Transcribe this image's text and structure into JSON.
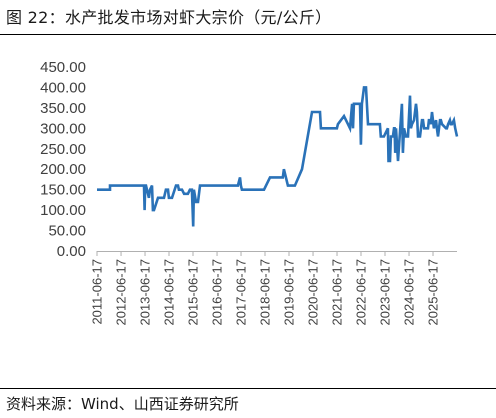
{
  "figure": {
    "title": "图 22：水产批发市场对虾大宗价（元/公斤）",
    "source": "资料来源：Wind、山西证券研究所"
  },
  "chart_data": {
    "type": "line",
    "title": "",
    "xlabel": "",
    "ylabel": "",
    "ylim": [
      0,
      450
    ],
    "yticks": [
      "0.00",
      "50.00",
      "100.00",
      "150.00",
      "200.00",
      "250.00",
      "300.00",
      "350.00",
      "400.00",
      "450.00"
    ],
    "xlim": [
      "2011-06-17",
      "2026-06-17"
    ],
    "xticks": [
      "2011-06-17",
      "2012-06-17",
      "2013-06-17",
      "2014-06-17",
      "2015-06-17",
      "2016-06-17",
      "2017-06-17",
      "2018-06-17",
      "2019-06-17",
      "2020-06-17",
      "2021-06-17",
      "2022-06-17",
      "2023-06-17",
      "2024-06-17",
      "2025-06-17"
    ],
    "grid": false,
    "legend": "none",
    "color": "#2a72b8",
    "series": [
      {
        "x": [
          "2011-06-17",
          "2012-01-01",
          "2012-01-01",
          "2013-06-01",
          "2013-06-10",
          "2013-06-20",
          "2013-07-01",
          "2013-08-15",
          "2013-09-01",
          "2013-10-01",
          "2013-10-15",
          "2013-11-01",
          "2014-01-01",
          "2014-02-01",
          "2014-04-01",
          "2014-05-01",
          "2014-06-01",
          "2014-06-15",
          "2014-07-01",
          "2014-08-01",
          "2014-10-01",
          "2014-11-01",
          "2014-11-15",
          "2015-01-01",
          "2015-02-01",
          "2015-04-01",
          "2015-05-01",
          "2015-06-01",
          "2015-06-20",
          "2015-07-01",
          "2015-08-01",
          "2015-09-01",
          "2015-10-01",
          "2016-01-01",
          "2016-07-01",
          "2017-01-01",
          "2017-05-01",
          "2017-06-01",
          "2017-06-15",
          "2017-07-01",
          "2018-01-01",
          "2018-02-01",
          "2018-06-01",
          "2018-09-01",
          "2019-01-01",
          "2019-03-01",
          "2019-03-15",
          "2019-04-01",
          "2019-06-01",
          "2019-06-20",
          "2019-07-15",
          "2019-08-01",
          "2019-09-01",
          "2019-09-15",
          "2020-01-01",
          "2020-06-01",
          "2020-09-01",
          "2020-10-01",
          "2020-10-15",
          "2020-11-01",
          "2021-01-01",
          "2021-06-01",
          "2021-06-15",
          "2021-07-01",
          "2021-10-01",
          "2022-01-01",
          "2022-02-01",
          "2022-02-15",
          "2022-03-01",
          "2022-04-01",
          "2022-06-01",
          "2022-06-15",
          "2022-07-01",
          "2022-08-01",
          "2022-09-01",
          "2022-10-01",
          "2023-01-01",
          "2023-04-01",
          "2023-04-15",
          "2023-05-01",
          "2023-06-01",
          "2023-08-01",
          "2023-08-10",
          "2023-08-20",
          "2023-09-01",
          "2023-09-15",
          "2023-10-01",
          "2023-10-15",
          "2023-11-01",
          "2023-11-10",
          "2023-11-20",
          "2023-12-01",
          "2024-01-01",
          "2024-03-01",
          "2024-03-15",
          "2024-04-01",
          "2024-05-01",
          "2024-05-15",
          "2024-06-01",
          "2024-07-01",
          "2024-07-15",
          "2024-08-01",
          "2024-09-01",
          "2024-10-01",
          "2024-10-15",
          "2024-11-01",
          "2024-12-01",
          "2025-01-01",
          "2025-01-15",
          "2025-02-01",
          "2025-04-01",
          "2025-04-15",
          "2025-05-01",
          "2025-05-15",
          "2025-06-01",
          "2025-07-01",
          "2025-08-01",
          "2025-08-15",
          "2025-09-01",
          "2025-10-01",
          "2025-10-15",
          "2025-11-01",
          "2026-01-01",
          "2026-01-15",
          "2026-02-01",
          "2026-03-01",
          "2026-03-15",
          "2026-04-01",
          "2026-05-01",
          "2026-05-20",
          "2026-06-17"
        ],
        "y": [
          150,
          150,
          160,
          160,
          100,
          160,
          160,
          130,
          150,
          160,
          100,
          100,
          130,
          130,
          130,
          150,
          150,
          130,
          130,
          130,
          160,
          160,
          150,
          150,
          140,
          140,
          150,
          150,
          60,
          150,
          120,
          120,
          160,
          160,
          160,
          160,
          160,
          180,
          160,
          150,
          150,
          150,
          150,
          180,
          180,
          180,
          180,
          200,
          160,
          160,
          160,
          160,
          160,
          160,
          200,
          340,
          340,
          340,
          300,
          300,
          300,
          300,
          300,
          310,
          330,
          300,
          360,
          300,
          360,
          360,
          360,
          260,
          360,
          400,
          400,
          310,
          310,
          310,
          280,
          280,
          280,
          300,
          220,
          220,
          220,
          280,
          280,
          280,
          300,
          300,
          240,
          300,
          220,
          360,
          240,
          300,
          280,
          280,
          280,
          380,
          300,
          310,
          320,
          360,
          340,
          280,
          280,
          320,
          320,
          300,
          300,
          320,
          320,
          310,
          340,
          300,
          320,
          300,
          280,
          320,
          320,
          310,
          300,
          300,
          310,
          320,
          310,
          310,
          320,
          300,
          280
        ]
      }
    ]
  }
}
